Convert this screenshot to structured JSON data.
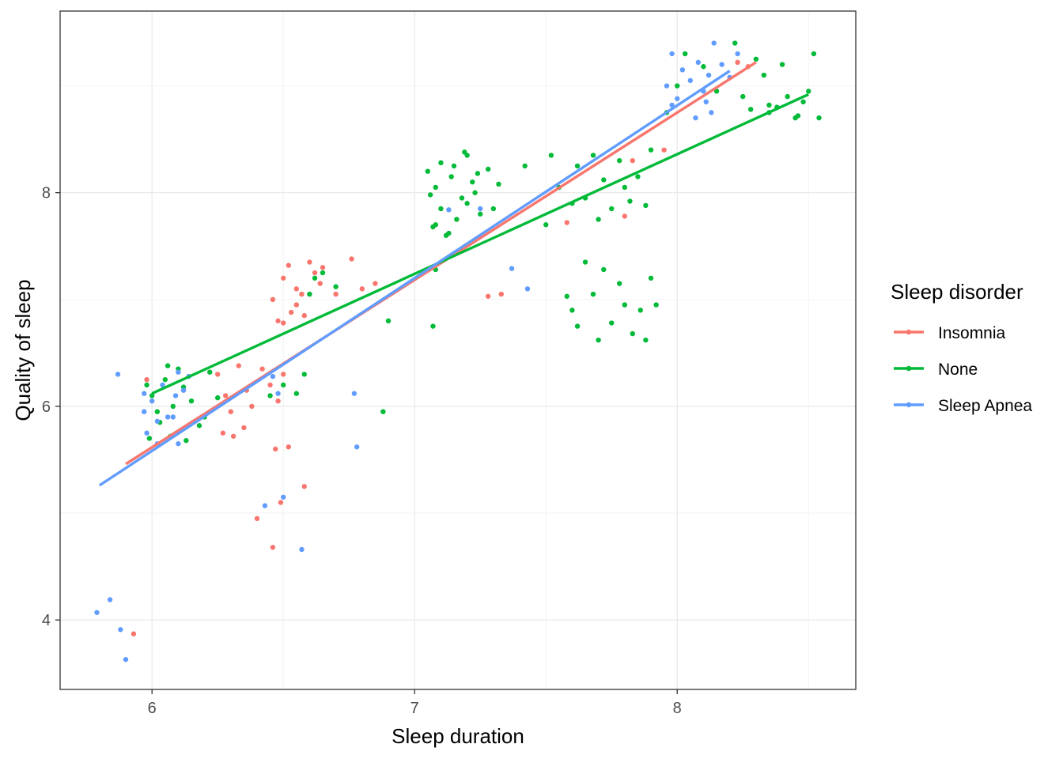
{
  "chart_data": {
    "type": "scatter",
    "title": "",
    "xlabel": "Sleep duration",
    "ylabel": "Quality of sleep",
    "xlim": [
      5.65,
      8.68
    ],
    "ylim": [
      3.35,
      9.7
    ],
    "xticks": [
      6,
      7,
      8
    ],
    "xtick_labels": [
      "6",
      "7",
      "8"
    ],
    "yticks": [
      4,
      6,
      8
    ],
    "ytick_labels": [
      "4",
      "6",
      "8"
    ],
    "grid": true,
    "legend": {
      "title": "Sleep disorder",
      "position": "right"
    },
    "series": [
      {
        "name": "Insomnia",
        "color": "#F8766D",
        "trend": [
          [
            5.9,
            5.46
          ],
          [
            8.3,
            9.22
          ]
        ],
        "points": [
          [
            5.98,
            6.25
          ],
          [
            6.12,
            6.15
          ],
          [
            6.25,
            6.3
          ],
          [
            6.28,
            6.1
          ],
          [
            6.3,
            5.95
          ],
          [
            6.33,
            6.38
          ],
          [
            6.36,
            6.15
          ],
          [
            6.38,
            6.0
          ],
          [
            6.42,
            6.35
          ],
          [
            6.45,
            6.2
          ],
          [
            6.48,
            6.05
          ],
          [
            6.5,
            6.3
          ],
          [
            6.27,
            5.75
          ],
          [
            6.31,
            5.72
          ],
          [
            6.35,
            5.8
          ],
          [
            6.47,
            5.6
          ],
          [
            6.52,
            5.62
          ],
          [
            6.46,
            7.0
          ],
          [
            6.48,
            6.8
          ],
          [
            6.5,
            7.2
          ],
          [
            6.52,
            7.32
          ],
          [
            6.55,
            7.1
          ],
          [
            6.58,
            6.85
          ],
          [
            6.6,
            7.35
          ],
          [
            6.62,
            7.25
          ],
          [
            6.64,
            7.15
          ],
          [
            6.55,
            6.95
          ],
          [
            6.57,
            7.05
          ],
          [
            6.5,
            6.78
          ],
          [
            6.53,
            6.88
          ],
          [
            6.65,
            7.3
          ],
          [
            6.7,
            7.05
          ],
          [
            6.76,
            7.38
          ],
          [
            6.8,
            7.1
          ],
          [
            6.85,
            7.15
          ],
          [
            6.4,
            4.95
          ],
          [
            6.46,
            4.68
          ],
          [
            6.49,
            5.1
          ],
          [
            6.58,
            5.25
          ],
          [
            5.93,
            3.87
          ],
          [
            7.28,
            7.03
          ],
          [
            7.33,
            7.05
          ],
          [
            7.58,
            7.72
          ],
          [
            7.8,
            7.78
          ],
          [
            7.83,
            8.3
          ],
          [
            7.95,
            8.4
          ],
          [
            8.23,
            9.22
          ],
          [
            8.27,
            9.18
          ]
        ]
      },
      {
        "name": "None",
        "color": "#00BA38",
        "trend": [
          [
            6.0,
            6.12
          ],
          [
            8.5,
            8.92
          ]
        ],
        "points": [
          [
            5.98,
            6.2
          ],
          [
            6.0,
            6.1
          ],
          [
            6.02,
            5.95
          ],
          [
            6.05,
            6.25
          ],
          [
            6.08,
            6.0
          ],
          [
            6.1,
            6.35
          ],
          [
            6.12,
            6.18
          ],
          [
            6.03,
            5.85
          ],
          [
            6.07,
            5.72
          ],
          [
            6.13,
            5.68
          ],
          [
            6.15,
            6.05
          ],
          [
            6.2,
            5.9
          ],
          [
            6.22,
            6.32
          ],
          [
            6.18,
            5.82
          ],
          [
            6.25,
            6.08
          ],
          [
            5.99,
            5.7
          ],
          [
            6.06,
            6.38
          ],
          [
            6.45,
            6.1
          ],
          [
            6.5,
            6.2
          ],
          [
            6.55,
            6.12
          ],
          [
            6.58,
            6.3
          ],
          [
            6.6,
            7.05
          ],
          [
            6.62,
            7.2
          ],
          [
            6.65,
            7.25
          ],
          [
            6.7,
            7.12
          ],
          [
            6.88,
            5.95
          ],
          [
            6.9,
            6.8
          ],
          [
            7.05,
            8.2
          ],
          [
            7.08,
            8.05
          ],
          [
            7.1,
            7.85
          ],
          [
            7.12,
            7.6
          ],
          [
            7.15,
            8.25
          ],
          [
            7.18,
            7.95
          ],
          [
            7.2,
            8.35
          ],
          [
            7.22,
            8.1
          ],
          [
            7.25,
            7.8
          ],
          [
            7.08,
            7.7
          ],
          [
            7.06,
            7.98
          ],
          [
            7.14,
            8.15
          ],
          [
            7.16,
            7.75
          ],
          [
            7.2,
            7.9
          ],
          [
            7.23,
            8.0
          ],
          [
            7.28,
            8.22
          ],
          [
            7.3,
            7.85
          ],
          [
            7.32,
            8.08
          ],
          [
            7.19,
            8.38
          ],
          [
            7.24,
            8.18
          ],
          [
            7.07,
            7.68
          ],
          [
            7.1,
            8.28
          ],
          [
            7.13,
            7.62
          ],
          [
            7.42,
            8.25
          ],
          [
            7.5,
            7.7
          ],
          [
            7.52,
            8.35
          ],
          [
            7.55,
            8.05
          ],
          [
            7.6,
            7.9
          ],
          [
            7.62,
            8.25
          ],
          [
            7.65,
            7.95
          ],
          [
            7.68,
            8.35
          ],
          [
            7.7,
            7.75
          ],
          [
            7.72,
            8.12
          ],
          [
            7.75,
            7.85
          ],
          [
            7.78,
            8.3
          ],
          [
            7.8,
            8.05
          ],
          [
            7.82,
            7.92
          ],
          [
            7.85,
            8.15
          ],
          [
            7.88,
            7.88
          ],
          [
            7.9,
            8.4
          ],
          [
            7.6,
            6.9
          ],
          [
            7.65,
            7.35
          ],
          [
            7.68,
            7.05
          ],
          [
            7.7,
            6.62
          ],
          [
            7.72,
            7.28
          ],
          [
            7.75,
            6.78
          ],
          [
            7.78,
            7.15
          ],
          [
            7.8,
            6.95
          ],
          [
            7.83,
            6.68
          ],
          [
            7.86,
            6.9
          ],
          [
            7.9,
            7.2
          ],
          [
            7.92,
            6.95
          ],
          [
            7.58,
            7.03
          ],
          [
            7.62,
            6.75
          ],
          [
            7.88,
            6.62
          ],
          [
            7.07,
            6.75
          ],
          [
            7.08,
            7.28
          ],
          [
            7.96,
            8.75
          ],
          [
            8.0,
            9.0
          ],
          [
            8.03,
            9.3
          ],
          [
            8.1,
            9.18
          ],
          [
            8.15,
            8.95
          ],
          [
            8.22,
            9.4
          ],
          [
            8.25,
            8.9
          ],
          [
            8.3,
            9.25
          ],
          [
            8.33,
            9.1
          ],
          [
            8.35,
            8.75
          ],
          [
            8.38,
            8.8
          ],
          [
            8.4,
            9.2
          ],
          [
            8.45,
            8.7
          ],
          [
            8.5,
            8.95
          ],
          [
            8.52,
            9.3
          ],
          [
            8.54,
            8.7
          ],
          [
            8.48,
            8.85
          ],
          [
            8.42,
            8.9
          ],
          [
            8.46,
            8.72
          ],
          [
            8.35,
            8.82
          ],
          [
            8.28,
            8.78
          ]
        ]
      },
      {
        "name": "Sleep Apnea",
        "color": "#619CFF",
        "trend": [
          [
            5.8,
            5.26
          ],
          [
            8.2,
            9.14
          ]
        ],
        "points": [
          [
            5.87,
            6.3
          ],
          [
            5.97,
            6.12
          ],
          [
            5.98,
            5.75
          ],
          [
            6.0,
            6.05
          ],
          [
            6.02,
            5.86
          ],
          [
            6.04,
            6.2
          ],
          [
            6.08,
            5.9
          ],
          [
            6.1,
            5.65
          ],
          [
            6.12,
            6.15
          ],
          [
            6.14,
            6.28
          ],
          [
            6.02,
            5.65
          ],
          [
            6.06,
            5.9
          ],
          [
            6.09,
            6.1
          ],
          [
            6.1,
            6.32
          ],
          [
            5.97,
            5.95
          ],
          [
            6.46,
            6.28
          ],
          [
            6.48,
            6.12
          ],
          [
            5.79,
            4.07
          ],
          [
            5.84,
            4.19
          ],
          [
            5.88,
            3.91
          ],
          [
            5.9,
            3.63
          ],
          [
            6.43,
            5.07
          ],
          [
            6.5,
            5.15
          ],
          [
            6.57,
            4.66
          ],
          [
            6.78,
            5.62
          ],
          [
            6.77,
            6.12
          ],
          [
            7.13,
            7.84
          ],
          [
            7.25,
            7.85
          ],
          [
            7.37,
            7.29
          ],
          [
            7.43,
            7.1
          ],
          [
            7.98,
            9.3
          ],
          [
            8.0,
            8.88
          ],
          [
            8.02,
            9.15
          ],
          [
            8.05,
            9.05
          ],
          [
            8.08,
            9.22
          ],
          [
            8.1,
            8.95
          ],
          [
            8.12,
            9.1
          ],
          [
            8.13,
            8.75
          ],
          [
            8.14,
            9.4
          ],
          [
            8.17,
            9.2
          ],
          [
            8.2,
            9.08
          ],
          [
            8.23,
            9.3
          ],
          [
            8.07,
            8.7
          ],
          [
            8.11,
            8.85
          ],
          [
            7.96,
            9.0
          ],
          [
            7.98,
            8.82
          ]
        ]
      }
    ]
  }
}
